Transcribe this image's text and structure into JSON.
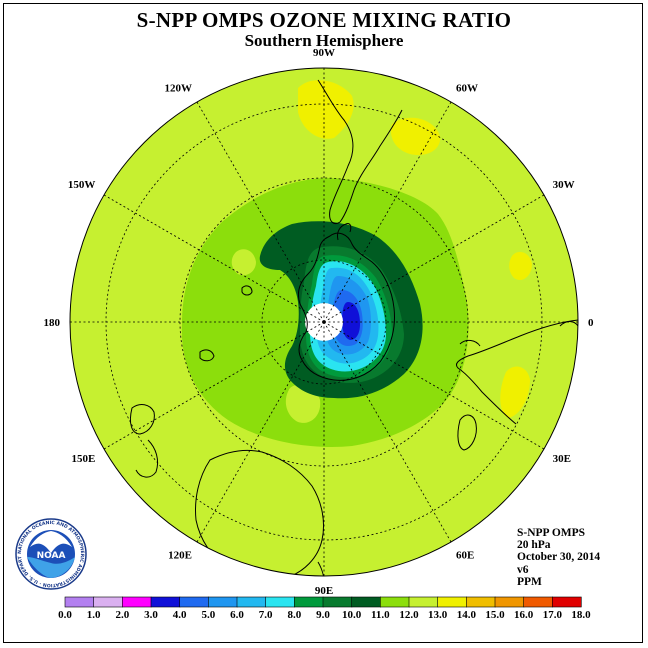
{
  "title": "S-NPP OMPS OZONE MIXING RATIO",
  "subtitle": "Southern Hemisphere",
  "info": {
    "instrument": "S-NPP OMPS",
    "level": "20 hPa",
    "date": "October 30, 2014",
    "version": "v6",
    "units": "PPM"
  },
  "logo": {
    "text": "NOAA",
    "ring_text": "NATIONAL OCEANIC AND ATMOSPHERIC ADMINISTRATION · U.S. DEPARTMENT OF COMMERCE"
  },
  "longitude_labels": [
    {
      "label": "0",
      "lon": 0
    },
    {
      "label": "30E",
      "lon": 30
    },
    {
      "label": "60E",
      "lon": 60
    },
    {
      "label": "90E",
      "lon": 90
    },
    {
      "label": "120E",
      "lon": 120
    },
    {
      "label": "150E",
      "lon": 150
    },
    {
      "label": "180",
      "lon": 180
    },
    {
      "label": "150W",
      "lon": -150
    },
    {
      "label": "120W",
      "lon": -120
    },
    {
      "label": "90W",
      "lon": -90
    },
    {
      "label": "60W",
      "lon": -60
    },
    {
      "label": "30W",
      "lon": -30
    }
  ],
  "colorbar": {
    "ticks": [
      "0.0",
      "1.0",
      "2.0",
      "3.0",
      "4.0",
      "5.0",
      "6.0",
      "7.0",
      "8.0",
      "9.0",
      "10.0",
      "11.0",
      "12.0",
      "13.0",
      "14.0",
      "15.0",
      "16.0",
      "17.0",
      "18.0"
    ],
    "colors": [
      "#b380f0",
      "#dab0f0",
      "#ff00ff",
      "#1010d8",
      "#1f6af0",
      "#1f96f0",
      "#22b8f0",
      "#2ae4f0",
      "#009a3c",
      "#087a2e",
      "#005c22",
      "#8cde0c",
      "#c6f030",
      "#f0f000",
      "#f0be00",
      "#f09600",
      "#f05a00",
      "#e00000",
      "#8a5a3a"
    ]
  },
  "map_colors": {
    "background": "#c6f030",
    "level_11": "#8cde0c",
    "level_12": "#c6f030",
    "level_13": "#f0f000",
    "level_9": "#087a2e",
    "level_10": "#005c22",
    "level_8": "#009a3c",
    "level_7": "#2ae4f0",
    "level_6": "#22b8f0",
    "level_5": "#1f96f0",
    "level_4": "#1f6af0",
    "level_3": "#1010d8"
  }
}
